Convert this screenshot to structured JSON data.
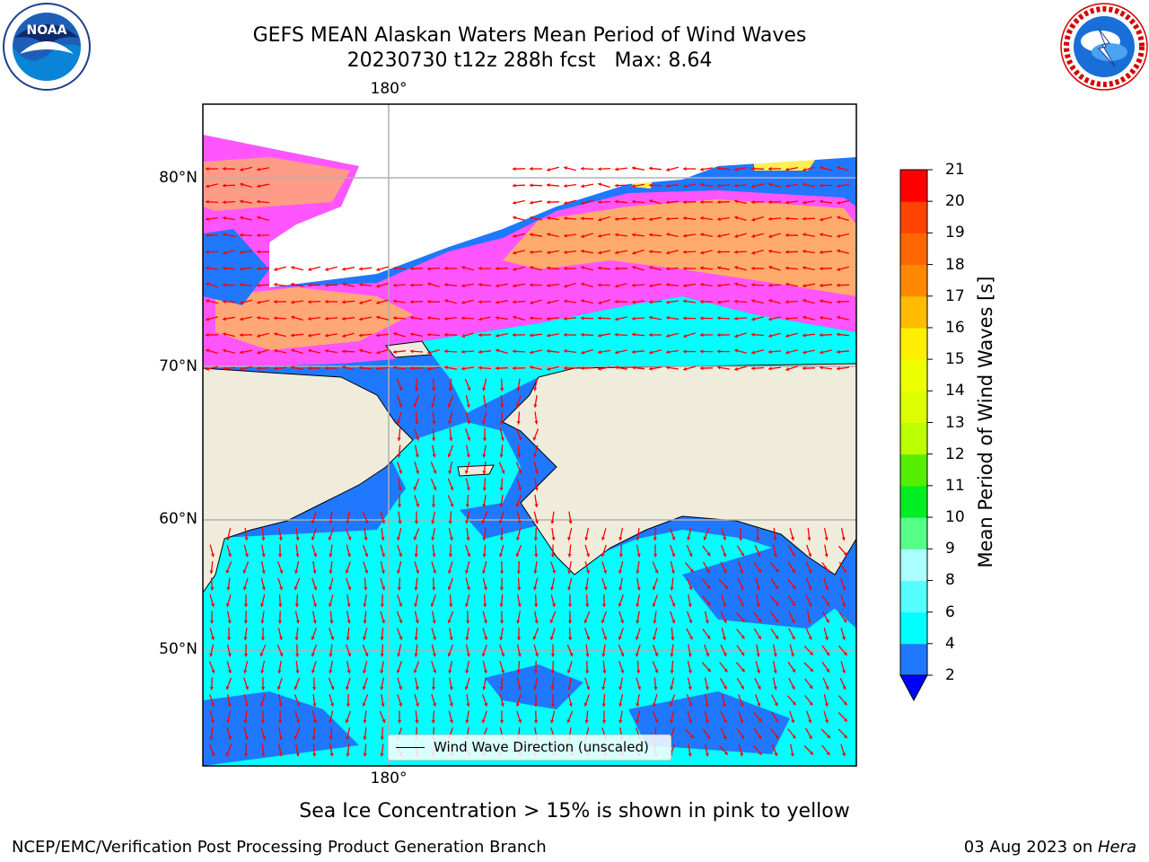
{
  "header": {
    "title_line1": "GEFS MEAN Alaskan Waters Mean Period of Wind Waves",
    "title_line2": "20230730 t12z 288h fcst   Max: 8.64"
  },
  "logos": {
    "left": {
      "name": "noaa-logo",
      "text": "NOAA",
      "ring_text": "NATIONAL OCEANIC AND ATMOSPHERIC ADMINISTRATION · U.S. DEPARTMENT OF COMMERCE"
    },
    "right": {
      "name": "nws-logo",
      "ring_text": "NATIONAL WEATHER SERVICE"
    }
  },
  "map": {
    "lat_labels": [
      "80°N",
      "70°N",
      "60°N",
      "50°N"
    ],
    "lon_label_top": "180°",
    "lon_label_bottom": "180°",
    "legend_label": "Wind Wave Direction (unscaled)",
    "colors": {
      "land": "#efecdc",
      "sea_ice_pink": "#ff55ff",
      "sea_ice_orange": "#ffbb55",
      "sea_ice_yellow": "#ffee55",
      "period_2_4": "#1f78ff",
      "period_4_6": "#00ffff",
      "period_6_8": "#55ffff",
      "period_8_9": "#aaffff",
      "arrows": "#ff0000",
      "gridlines": "#b0b0b0"
    }
  },
  "colorbar": {
    "title": "Mean Period of Wind Waves [s]",
    "ticks": [
      "21",
      "20",
      "19",
      "18",
      "17",
      "16",
      "15",
      "14",
      "13",
      "12",
      "11",
      "10",
      "9",
      "8",
      "6",
      "4",
      "2"
    ],
    "bands": [
      {
        "from": 2,
        "to": 4,
        "color": "#1f78ff"
      },
      {
        "from": 4,
        "to": 6,
        "color": "#00ffff"
      },
      {
        "from": 6,
        "to": 8,
        "color": "#55ffff"
      },
      {
        "from": 8,
        "to": 9,
        "color": "#aaffff"
      },
      {
        "from": 9,
        "to": 10,
        "color": "#55ff88"
      },
      {
        "from": 10,
        "to": 11,
        "color": "#00ee22"
      },
      {
        "from": 11,
        "to": 12,
        "color": "#55ee00"
      },
      {
        "from": 12,
        "to": 13,
        "color": "#bbff00"
      },
      {
        "from": 13,
        "to": 14,
        "color": "#ddff00"
      },
      {
        "from": 14,
        "to": 15,
        "color": "#eeff00"
      },
      {
        "from": 15,
        "to": 16,
        "color": "#ffee00"
      },
      {
        "from": 16,
        "to": 17,
        "color": "#ffbb00"
      },
      {
        "from": 17,
        "to": 18,
        "color": "#ff8800"
      },
      {
        "from": 18,
        "to": 19,
        "color": "#ff6600"
      },
      {
        "from": 19,
        "to": 20,
        "color": "#ff4400"
      },
      {
        "from": 20,
        "to": 21,
        "color": "#ff0000"
      }
    ],
    "extend_color": "#0000ff"
  },
  "caption": "Sea Ice Concentration > 15% is shown in pink to yellow",
  "footer": {
    "left": "NCEP/EMC/Verification Post Processing Product Generation Branch",
    "right_prefix": "03 Aug 2023 on ",
    "right_machine": "Hera"
  }
}
